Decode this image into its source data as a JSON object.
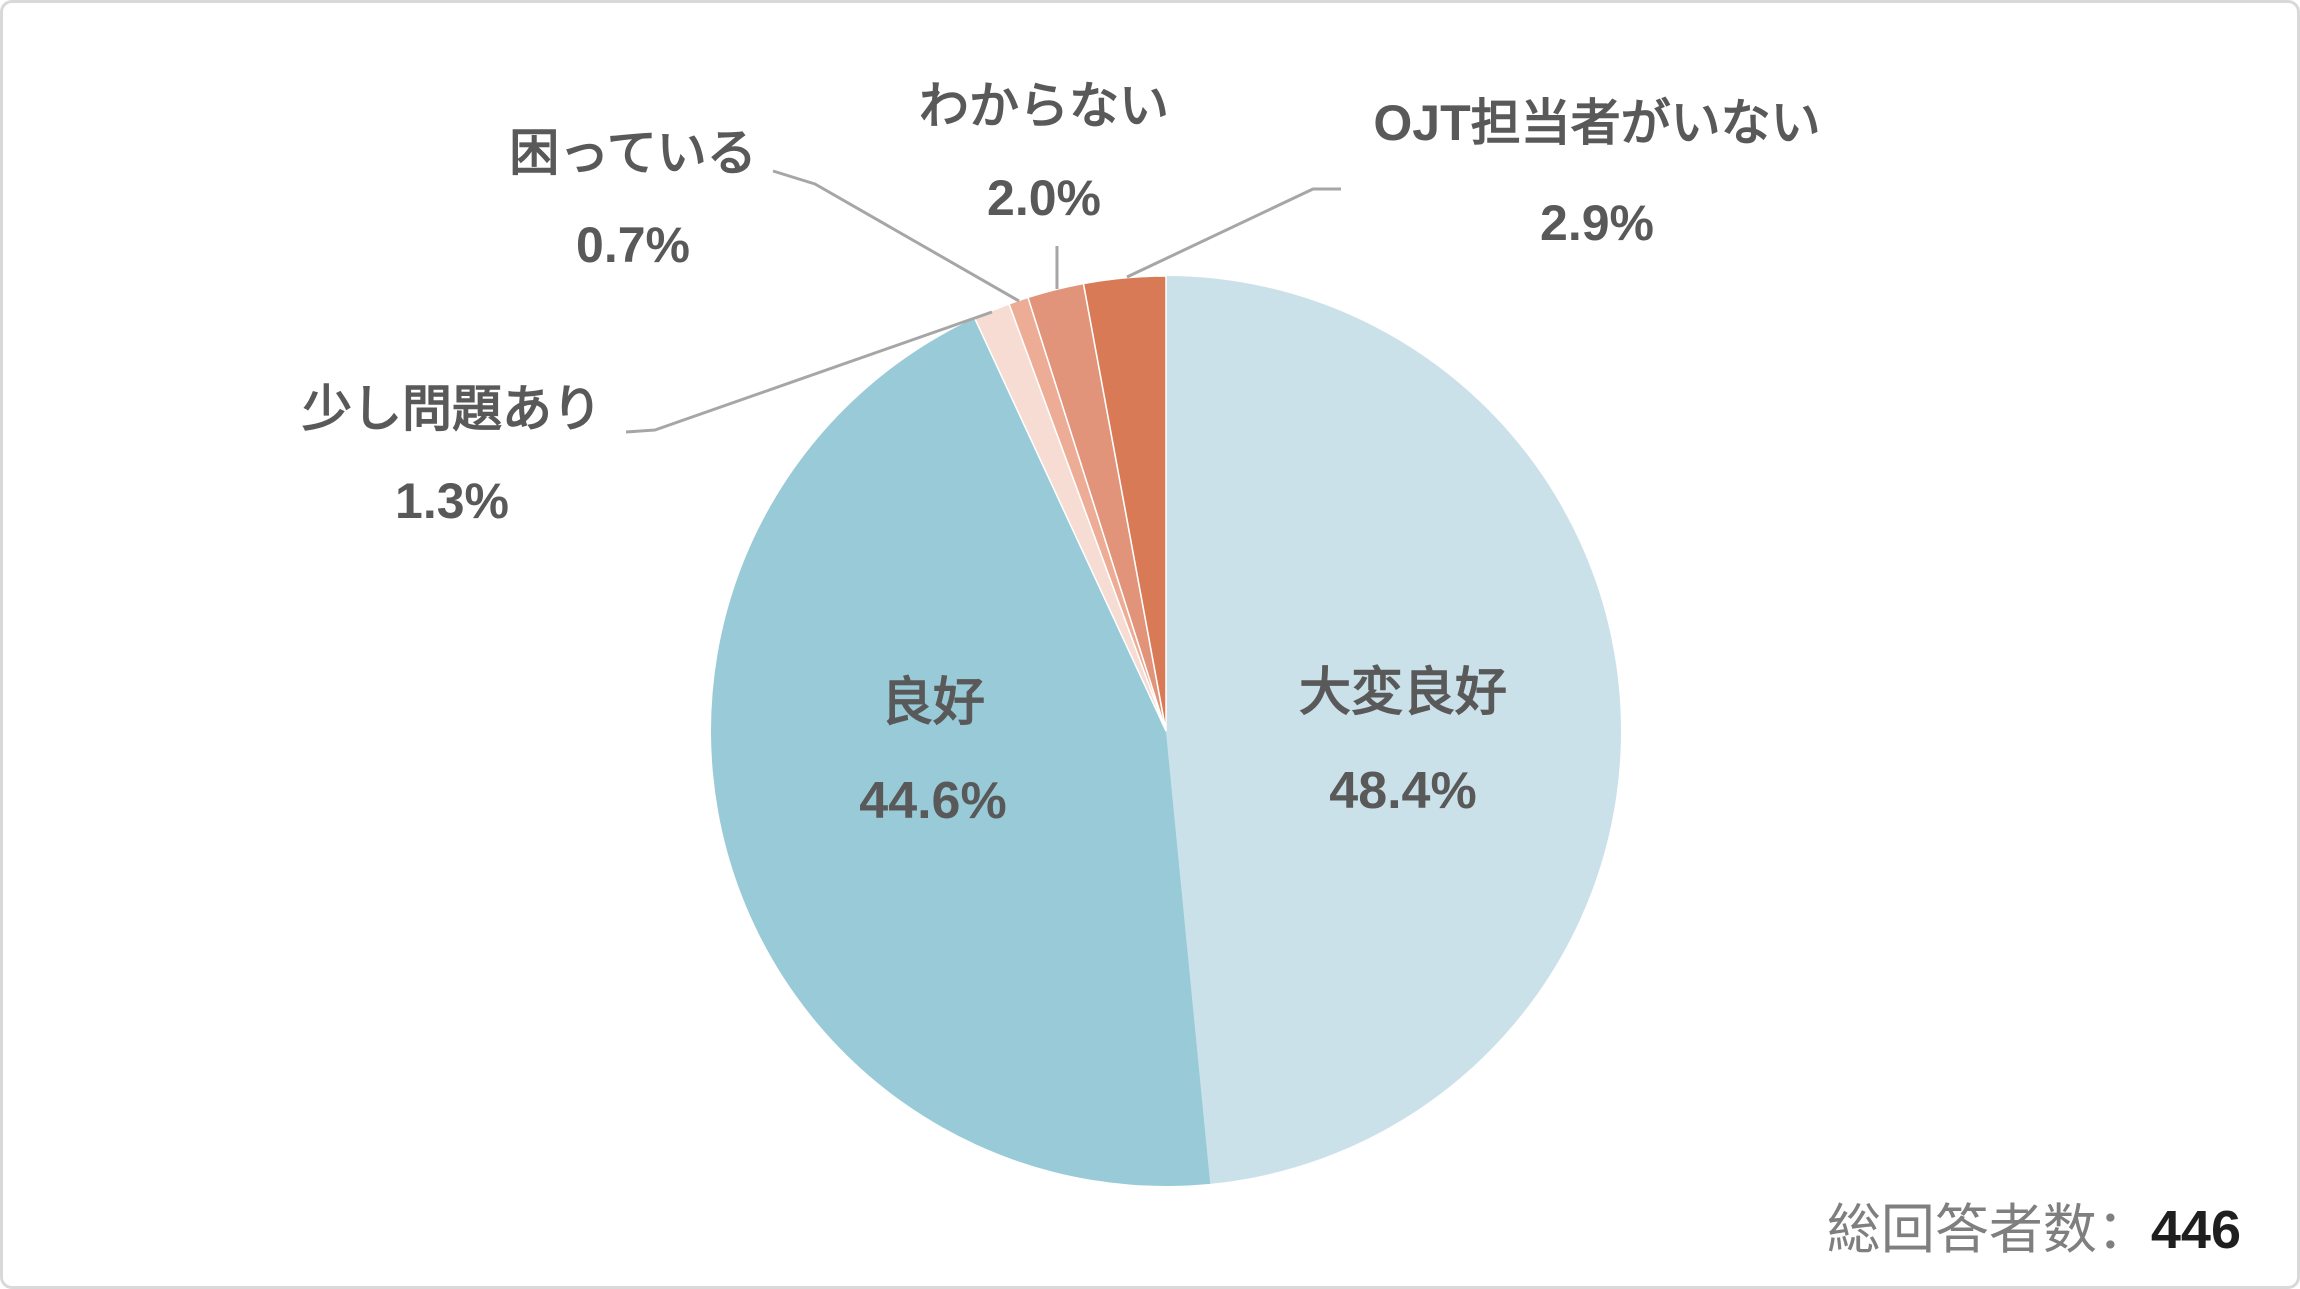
{
  "chart_data": {
    "type": "pie",
    "title": "",
    "direction": "clockwise",
    "start_angle_deg": 0,
    "legend_position": "callout-labels",
    "slices": [
      {
        "label": "大変良好",
        "value": 48.4,
        "display": "48.4%",
        "color": "#cbe1ea"
      },
      {
        "label": "良好",
        "value": 44.6,
        "display": "44.6%",
        "color": "#98cad8"
      },
      {
        "label": "少し問題あり",
        "value": 1.3,
        "display": "1.3%",
        "color": "#f6dcd3"
      },
      {
        "label": "困っている",
        "value": 0.7,
        "display": "0.7%",
        "color": "#edac96"
      },
      {
        "label": "わからない",
        "value": 2.0,
        "display": "2.0%",
        "color": "#e2947a"
      },
      {
        "label": "OJT担当者がいない",
        "value": 2.9,
        "display": "2.9%",
        "color": "#d87a55"
      }
    ],
    "leader_line_color": "#a6a6a6",
    "label_color": "#595959"
  },
  "footer": {
    "label": "総回答者数：",
    "value": "446"
  }
}
